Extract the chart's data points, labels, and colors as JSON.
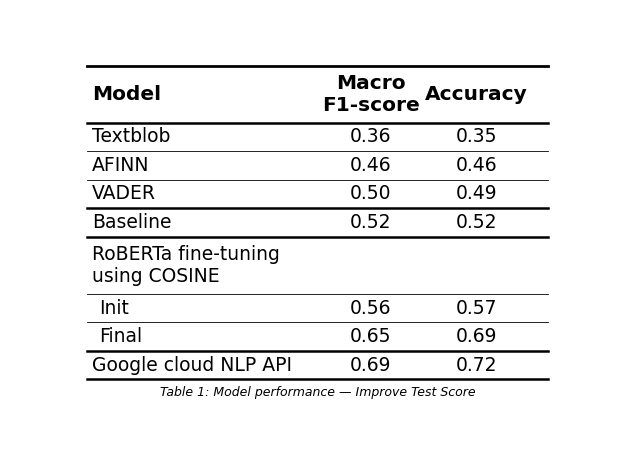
{
  "col_headers": [
    "Model",
    "Macro\nF1-score",
    "Accuracy"
  ],
  "rows": [
    {
      "model": "Textblob",
      "f1": "0.36",
      "acc": "0.35",
      "indent": 0
    },
    {
      "model": "AFINN",
      "f1": "0.46",
      "acc": "0.46",
      "indent": 0
    },
    {
      "model": "VADER",
      "f1": "0.50",
      "acc": "0.49",
      "indent": 0
    },
    {
      "model": "Baseline",
      "f1": "0.52",
      "acc": "0.52",
      "indent": 0
    },
    {
      "model": "RoBERTa fine-tuning\nusing COSINE",
      "f1": "",
      "acc": "",
      "indent": 0
    },
    {
      "model": "Init",
      "f1": "0.56",
      "acc": "0.57",
      "indent": 1
    },
    {
      "model": "Final",
      "f1": "0.65",
      "acc": "0.69",
      "indent": 1
    },
    {
      "model": "Google cloud NLP API",
      "f1": "0.69",
      "acc": "0.72",
      "indent": 0
    }
  ],
  "thick_after_rows": [
    2,
    3,
    6,
    7
  ],
  "thin_after_rows": [
    0,
    1,
    4,
    5
  ],
  "bg_color": "#ffffff",
  "text_color": "#000000",
  "font_size": 13.5,
  "header_font_size": 14.5,
  "caption": "Table 1: Model performance — Improve Test Score"
}
